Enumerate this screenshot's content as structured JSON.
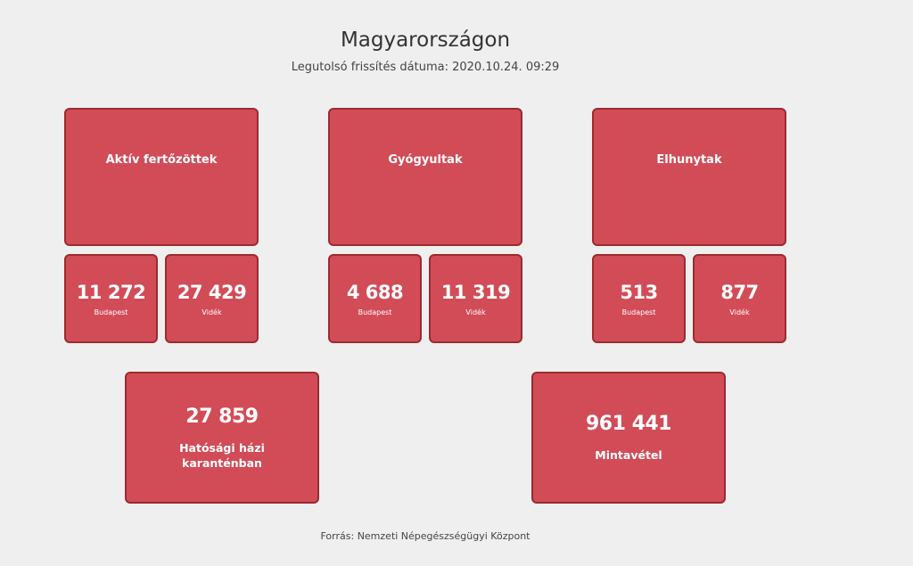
{
  "header": {
    "title": "Magyarországon",
    "updated": "Legutolsó frissítés dátuma: 2020.10.24. 09:29"
  },
  "groups": [
    {
      "title": "Aktív fertőzöttek",
      "budapest": "11 272",
      "videk": "27 429"
    },
    {
      "title": "Gyógyultak",
      "budapest": "4 688",
      "videk": "11 319"
    },
    {
      "title": "Elhunytak",
      "budapest": "513",
      "videk": "877"
    }
  ],
  "labels": {
    "budapest": "Budapest",
    "videk": "Vidék"
  },
  "bottom": [
    {
      "value": "27 859",
      "label": "Hatósági házi karanténban"
    },
    {
      "value": "961 441",
      "label": "Mintavétel"
    }
  ],
  "footer": "Forrás: Nemzeti Népegészségügyi Központ",
  "colors": {
    "card": "#d24c58",
    "border": "#9b2b2f",
    "background": "#efefef"
  }
}
